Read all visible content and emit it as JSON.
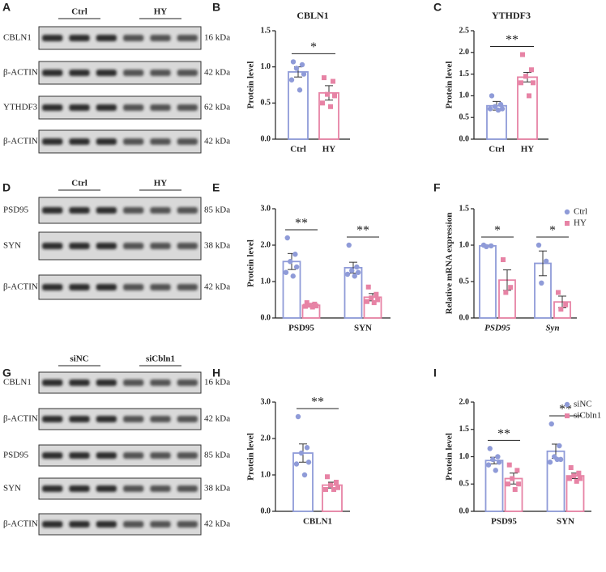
{
  "blots": [
    {
      "letter": "A",
      "groups": [
        "Ctrl",
        "HY"
      ],
      "rows": [
        {
          "label": "CBLN1",
          "size": "16 kDa"
        },
        {
          "label": "β-ACTIN",
          "size": "42 kDa"
        },
        {
          "label": "YTHDF3",
          "size": "62 kDa"
        },
        {
          "label": "β-ACTIN",
          "size": "42 kDa"
        }
      ]
    },
    {
      "letter": "D",
      "groups": [
        "Ctrl",
        "HY"
      ],
      "rows": [
        {
          "label": "PSD95",
          "size": "85 kDa"
        },
        {
          "label": "SYN",
          "size": "38 kDa"
        },
        {
          "label": "β-ACTIN",
          "size": "42 kDa"
        }
      ]
    },
    {
      "letter": "G",
      "groups": [
        "siNC",
        "siCbln1"
      ],
      "rows": [
        {
          "label": "CBLN1",
          "size": "16 kDa"
        },
        {
          "label": "β-ACTIN",
          "size": "42 kDa"
        },
        {
          "label": "PSD95",
          "size": "85 kDa"
        },
        {
          "label": "SYN",
          "size": "38 kDa"
        },
        {
          "label": "β-ACTIN",
          "size": "42 kDa"
        }
      ]
    }
  ],
  "chart_data": [
    {
      "letter": "B",
      "type": "bar",
      "title": "CBLN1",
      "y_label": "Protein level",
      "categories": [
        "Ctrl",
        "HY"
      ],
      "values": [
        0.93,
        0.64
      ],
      "errors": [
        0.07,
        0.1
      ],
      "points": [
        [
          1.07,
          1.03,
          0.98,
          0.9,
          0.82,
          0.68
        ],
        [
          0.85,
          0.8,
          0.62,
          0.6,
          0.5,
          0.45
        ]
      ],
      "colors": [
        "#8f9bd8",
        "#e783a5"
      ],
      "markers": [
        "circle",
        "square"
      ],
      "significance": [
        "*"
      ],
      "ylim": [
        0,
        1.5
      ],
      "yticks": [
        {
          "value": 0,
          "label": "0.0"
        },
        0.5,
        {
          "value": 1,
          "label": "1.0"
        },
        1.5
      ]
    },
    {
      "letter": "C",
      "type": "bar",
      "title": "YTHDF3",
      "y_label": "Protein level",
      "categories": [
        "Ctrl",
        "HY"
      ],
      "values": [
        0.77,
        1.43
      ],
      "errors": [
        0.1,
        0.11
      ],
      "points": [
        [
          1.0,
          0.8,
          0.75,
          0.7,
          0.7,
          0.67
        ],
        [
          1.95,
          1.6,
          1.45,
          1.3,
          1.3,
          1.0
        ]
      ],
      "colors": [
        "#8f9bd8",
        "#e783a5"
      ],
      "markers": [
        "circle",
        "square"
      ],
      "significance": [
        "**"
      ],
      "ylim": [
        0,
        2.5
      ],
      "yticks": [
        {
          "value": 0,
          "label": "0.0"
        },
        0.5,
        {
          "value": 1,
          "label": "1.0"
        },
        1.5,
        {
          "value": 2,
          "label": "2.0"
        },
        2.5
      ]
    },
    {
      "letter": "E",
      "type": "bar",
      "y_label": "Protein level",
      "categories": [
        "PSD95",
        "SYN"
      ],
      "series": [
        {
          "color": "#8f9bd8",
          "marker": "circle",
          "values": [
            1.55,
            1.38
          ],
          "errors": [
            0.22,
            0.15
          ],
          "points": [
            [
              2.2,
              1.75,
              1.55,
              1.4,
              1.25,
              1.15
            ],
            [
              2.0,
              1.4,
              1.3,
              1.25,
              1.2,
              1.15
            ]
          ]
        },
        {
          "color": "#e783a5",
          "marker": "square",
          "values": [
            0.35,
            0.57
          ],
          "errors": [
            0.04,
            0.1
          ],
          "points": [
            [
              0.42,
              0.38,
              0.35,
              0.33,
              0.32,
              0.3
            ],
            [
              0.85,
              0.65,
              0.55,
              0.5,
              0.45,
              0.42
            ]
          ]
        }
      ],
      "significance": [
        "**",
        "**"
      ],
      "ylim": [
        0,
        3
      ],
      "yticks": [
        {
          "value": 0,
          "label": "0.0"
        },
        {
          "value": 1,
          "label": "1.0"
        },
        {
          "value": 2,
          "label": "2.0"
        },
        {
          "value": 3,
          "label": "3.0"
        }
      ]
    },
    {
      "letter": "F",
      "type": "bar",
      "y_label": "Relative mRNA expression",
      "categories": [
        "PSD95",
        "Syn"
      ],
      "italic_categories": true,
      "series": [
        {
          "name": "Ctrl",
          "color": "#8f9bd8",
          "marker": "circle",
          "values": [
            0.99,
            0.75
          ],
          "errors": [
            0.01,
            0.17
          ],
          "points": [
            [
              1.0,
              0.99,
              0.98
            ],
            [
              1.0,
              0.78,
              0.48
            ]
          ]
        },
        {
          "name": "HY",
          "color": "#e783a5",
          "marker": "square",
          "values": [
            0.52,
            0.22
          ],
          "errors": [
            0.14,
            0.08
          ],
          "points": [
            [
              0.8,
              0.42,
              0.35
            ],
            [
              0.35,
              0.18,
              0.12
            ]
          ]
        }
      ],
      "significance": [
        "*",
        "*"
      ],
      "legend": true,
      "ylim": [
        0,
        1.5
      ],
      "yticks": [
        {
          "value": 0,
          "label": "0.0"
        },
        0.5,
        {
          "value": 1,
          "label": "1.0"
        },
        1.5
      ]
    },
    {
      "letter": "H",
      "type": "bar",
      "y_label": "Protein level",
      "categories": [
        "CBLN1"
      ],
      "series": [
        {
          "color": "#8f9bd8",
          "marker": "circle",
          "values": [
            1.6
          ],
          "errors": [
            0.25
          ],
          "points": [
            [
              2.6,
              1.75,
              1.6,
              1.35,
              1.3,
              1.0
            ]
          ]
        },
        {
          "color": "#e783a5",
          "marker": "square",
          "values": [
            0.72
          ],
          "errors": [
            0.08
          ],
          "points": [
            [
              0.95,
              0.8,
              0.72,
              0.65,
              0.6,
              0.6
            ]
          ]
        }
      ],
      "significance": [
        "**"
      ],
      "ylim": [
        0,
        3
      ],
      "yticks": [
        {
          "value": 0,
          "label": "0.0"
        },
        {
          "value": 1,
          "label": "1.0"
        },
        {
          "value": 2,
          "label": "2.0"
        },
        {
          "value": 3,
          "label": "3.0"
        }
      ]
    },
    {
      "letter": "I",
      "type": "bar",
      "y_label": "Protein level",
      "categories": [
        "PSD95",
        "SYN"
      ],
      "series": [
        {
          "name": "siNC",
          "color": "#8f9bd8",
          "marker": "circle",
          "values": [
            0.93,
            1.1
          ],
          "errors": [
            0.06,
            0.13
          ],
          "points": [
            [
              1.15,
              1.0,
              0.95,
              0.9,
              0.85,
              0.75
            ],
            [
              1.6,
              1.2,
              1.0,
              0.95,
              0.9,
              0.95
            ]
          ]
        },
        {
          "name": "siCbln1",
          "color": "#e783a5",
          "marker": "square",
          "values": [
            0.6,
            0.65
          ],
          "errors": [
            0.1,
            0.05
          ],
          "points": [
            [
              0.85,
              0.75,
              0.6,
              0.5,
              0.5,
              0.4
            ],
            [
              0.8,
              0.7,
              0.65,
              0.6,
              0.6,
              0.55
            ]
          ]
        }
      ],
      "significance": [
        "**",
        "**"
      ],
      "legend": true,
      "ylim": [
        0,
        2
      ],
      "yticks": [
        {
          "value": 0,
          "label": "0.0"
        },
        0.5,
        {
          "value": 1,
          "label": "1.0"
        },
        1.5,
        {
          "value": 2,
          "label": "2.0"
        }
      ]
    }
  ]
}
